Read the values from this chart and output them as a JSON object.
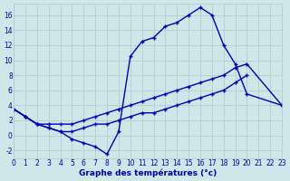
{
  "title": "Graphe des températures (°c)",
  "background_color": "#cce8e8",
  "line_color": "#0000bb",
  "grid_color": "#aacccc",
  "xlim": [
    0,
    23
  ],
  "ylim": [
    -3,
    17.5
  ],
  "xticks": [
    0,
    1,
    2,
    3,
    4,
    5,
    6,
    7,
    8,
    9,
    10,
    11,
    12,
    13,
    14,
    15,
    16,
    17,
    18,
    19,
    20,
    21,
    22,
    23
  ],
  "yticks": [
    -2,
    0,
    2,
    4,
    6,
    8,
    10,
    12,
    14,
    16
  ],
  "series1_x": [
    0,
    1,
    2,
    3,
    4,
    5,
    6,
    7,
    8,
    9,
    10,
    11,
    12,
    13,
    14,
    15,
    16,
    17,
    18,
    19,
    20,
    23
  ],
  "series1_y": [
    3.5,
    2.5,
    1.5,
    1.0,
    0.5,
    -0.5,
    -1.0,
    -1.5,
    -2.5,
    0.5,
    10.5,
    12.5,
    13.0,
    14.5,
    15.0,
    16.0,
    17.0,
    16.0,
    12.0,
    9.5,
    5.5,
    4.0
  ],
  "series2_x": [
    0,
    1,
    2,
    3,
    4,
    5,
    6,
    7,
    8,
    9,
    10,
    11,
    12,
    13,
    14,
    15,
    16,
    17,
    18,
    19,
    20,
    23
  ],
  "series2_y": [
    3.5,
    2.5,
    1.5,
    1.5,
    1.5,
    1.5,
    2.0,
    2.5,
    3.0,
    3.5,
    4.0,
    4.5,
    5.0,
    5.5,
    6.0,
    6.5,
    7.0,
    7.5,
    8.0,
    9.0,
    9.5,
    4.0
  ],
  "series3_x": [
    0,
    1,
    2,
    3,
    4,
    5,
    6,
    7,
    8,
    9,
    10,
    11,
    12,
    13,
    14,
    15,
    16,
    17,
    18,
    19,
    20,
    21,
    22,
    23
  ],
  "series3_y": [
    3.5,
    2.5,
    1.5,
    1.0,
    0.5,
    0.5,
    1.0,
    1.5,
    1.5,
    2.0,
    2.5,
    3.0,
    3.0,
    3.5,
    4.0,
    4.5,
    5.0,
    5.5,
    6.0,
    7.0,
    8.0,
    null,
    null,
    4.0
  ],
  "tick_fontsize": 5.5,
  "label_fontsize": 6.5
}
